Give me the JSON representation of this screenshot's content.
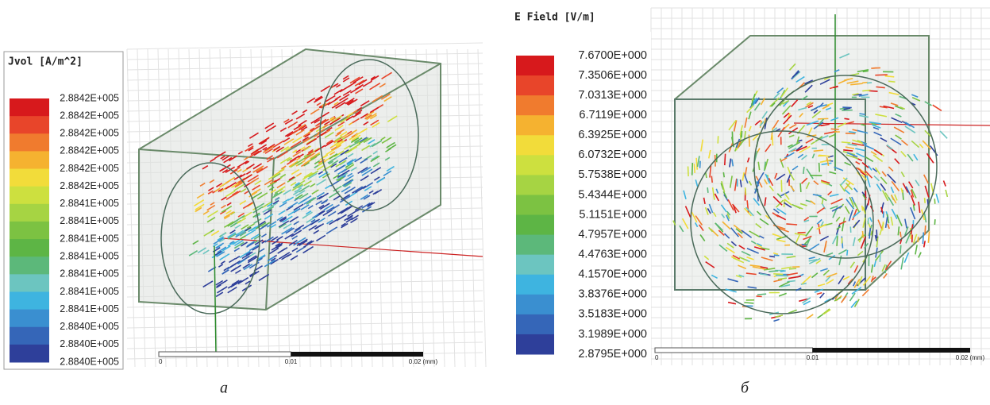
{
  "panels": [
    {
      "legend_title": "Jvol [A/m^2]",
      "legend_labels": [
        "2.8842E+005",
        "2.8842E+005",
        "2.8842E+005",
        "2.8842E+005",
        "2.8842E+005",
        "2.8842E+005",
        "2.8841E+005",
        "2.8841E+005",
        "2.8841E+005",
        "2.8841E+005",
        "2.8841E+005",
        "2.8841E+005",
        "2.8841E+005",
        "2.8840E+005",
        "2.8840E+005",
        "2.8840E+005"
      ],
      "legend_colors": [
        "#d7191c",
        "#e8452a",
        "#f07b2e",
        "#f5b230",
        "#f2dc3a",
        "#cde03f",
        "#a6d443",
        "#7cc242",
        "#5db545",
        "#5cb87a",
        "#6cc5c0",
        "#3eb4e0",
        "#3a8fd0",
        "#3566b8",
        "#2e3f9a"
      ],
      "scale_labels": [
        "0",
        "0.01",
        "0.02 (mm)"
      ],
      "caption": "а"
    },
    {
      "legend_title": "E Field [V/m]",
      "legend_labels": [
        "7.6700E+000",
        "7.3506E+000",
        "7.0313E+000",
        "6.7119E+000",
        "6.3925E+000",
        "6.0732E+000",
        "5.7538E+000",
        "5.4344E+000",
        "5.1151E+000",
        "4.7957E+000",
        "4.4763E+000",
        "4.1570E+000",
        "3.8376E+000",
        "3.5183E+000",
        "3.1989E+000",
        "2.8795E+000"
      ],
      "legend_colors": [
        "#d7191c",
        "#e8452a",
        "#f07b2e",
        "#f5b230",
        "#f2dc3a",
        "#cde03f",
        "#a6d443",
        "#7cc242",
        "#5db545",
        "#5cb87a",
        "#6cc5c0",
        "#3eb4e0",
        "#3a8fd0",
        "#3566b8",
        "#2e3f9a"
      ],
      "scale_labels": [
        "0",
        "0.01",
        "0.02 (mm)"
      ],
      "caption": "б"
    }
  ]
}
